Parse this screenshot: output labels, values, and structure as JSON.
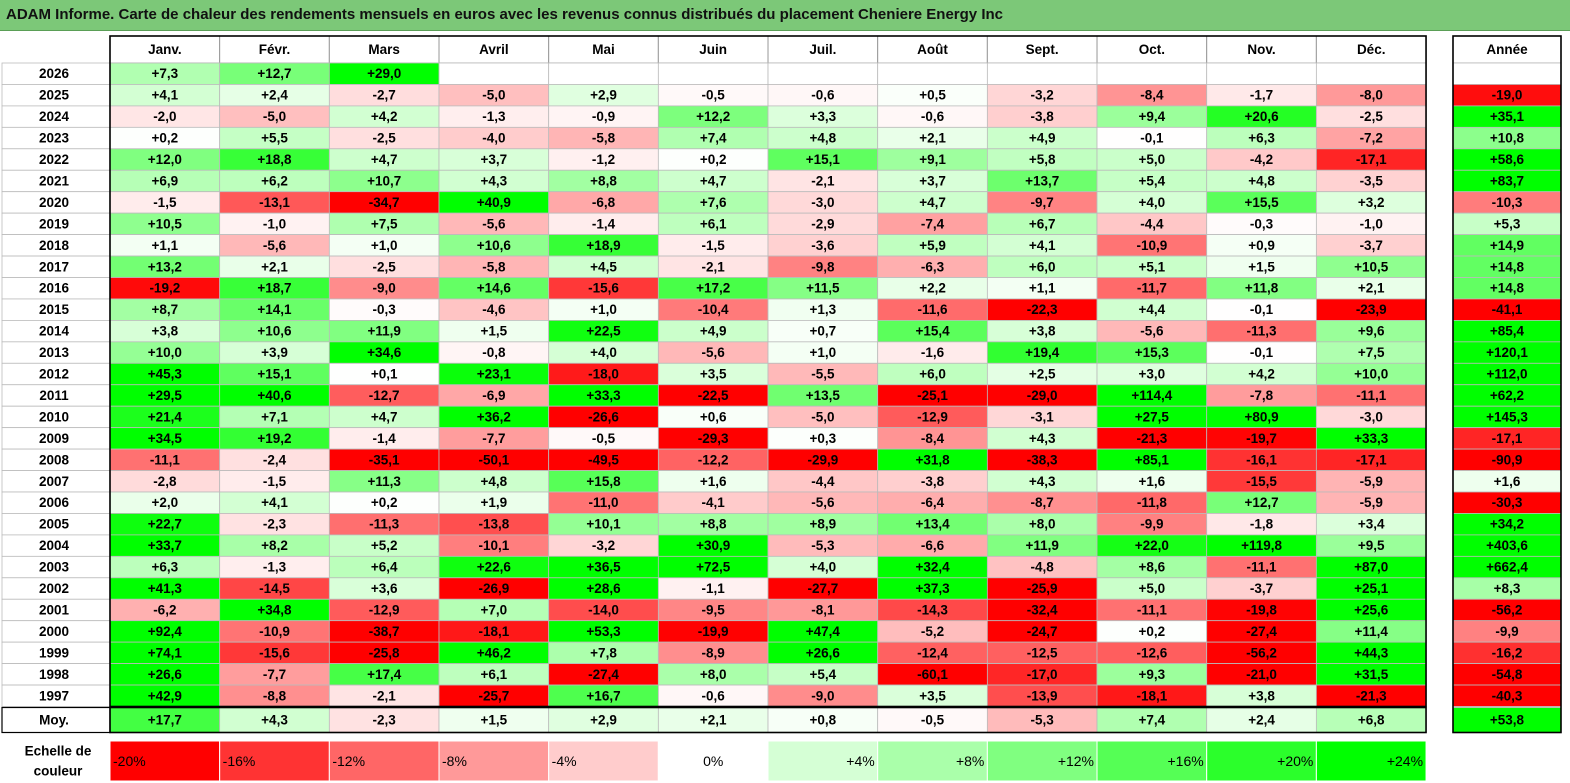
{
  "title": "ADAM Informe. Carte de chaleur des rendements mensuels en euros avec les revenus connus distribués du placement Cheniere Energy Inc",
  "chart_data": {
    "type": "heatmap",
    "months": [
      "Janv.",
      "Févr.",
      "Mars",
      "Avril",
      "Mai",
      "Juin",
      "Juil.",
      "Août",
      "Sept.",
      "Oct.",
      "Nov.",
      "Déc."
    ],
    "year_header": "Année",
    "rows": [
      {
        "label": "2026",
        "values": [
          7.3,
          12.7,
          29.0,
          null,
          null,
          null,
          null,
          null,
          null,
          null,
          null,
          null
        ],
        "year": null
      },
      {
        "label": "2025",
        "values": [
          4.1,
          2.4,
          -2.7,
          -5.0,
          2.9,
          -0.5,
          -0.6,
          0.5,
          -3.2,
          -8.4,
          -1.7,
          -8.0
        ],
        "year": -19.0
      },
      {
        "label": "2024",
        "values": [
          -2.0,
          -5.0,
          4.2,
          -1.3,
          -0.9,
          12.2,
          3.3,
          -0.6,
          -3.8,
          9.4,
          20.6,
          -2.5
        ],
        "year": 35.1
      },
      {
        "label": "2023",
        "values": [
          0.2,
          5.5,
          -2.5,
          -4.0,
          -5.8,
          7.4,
          4.8,
          2.1,
          4.9,
          -0.1,
          6.3,
          -7.2
        ],
        "year": 10.8
      },
      {
        "label": "2022",
        "values": [
          12.0,
          18.8,
          4.7,
          3.7,
          -1.2,
          0.2,
          15.1,
          9.1,
          5.8,
          5.0,
          -4.2,
          -17.1
        ],
        "year": 58.6
      },
      {
        "label": "2021",
        "values": [
          6.9,
          6.2,
          10.7,
          4.3,
          8.8,
          4.7,
          -2.1,
          3.7,
          13.7,
          5.4,
          4.8,
          -3.5
        ],
        "year": 83.7
      },
      {
        "label": "2020",
        "values": [
          -1.5,
          -13.1,
          -34.7,
          40.9,
          -6.8,
          7.6,
          -3.0,
          4.7,
          -9.7,
          4.0,
          15.5,
          3.2
        ],
        "year": -10.3
      },
      {
        "label": "2019",
        "values": [
          10.5,
          -1.0,
          7.5,
          -5.6,
          -1.4,
          6.1,
          -2.9,
          -7.4,
          6.7,
          -4.4,
          -0.3,
          -1.0
        ],
        "year": 5.3
      },
      {
        "label": "2018",
        "values": [
          1.1,
          -5.6,
          1.0,
          10.6,
          18.9,
          -1.5,
          -3.6,
          5.9,
          4.1,
          -10.9,
          0.9,
          -3.7
        ],
        "year": 14.9
      },
      {
        "label": "2017",
        "values": [
          13.2,
          2.1,
          -2.5,
          -5.8,
          4.5,
          -2.1,
          -9.8,
          -6.3,
          6.0,
          5.1,
          1.5,
          10.5
        ],
        "year": 14.8
      },
      {
        "label": "2016",
        "values": [
          -19.2,
          18.7,
          -9.0,
          14.6,
          -15.6,
          17.2,
          11.5,
          2.2,
          1.1,
          -11.7,
          11.8,
          2.1
        ],
        "year": 14.8
      },
      {
        "label": "2015",
        "values": [
          8.7,
          14.1,
          -0.3,
          -4.6,
          1.0,
          -10.4,
          1.3,
          -11.6,
          -22.3,
          4.4,
          -0.1,
          -23.9
        ],
        "year": -41.1
      },
      {
        "label": "2014",
        "values": [
          3.8,
          10.6,
          11.9,
          1.5,
          22.5,
          4.9,
          0.7,
          15.4,
          3.8,
          -5.6,
          -11.3,
          9.6
        ],
        "year": 85.4
      },
      {
        "label": "2013",
        "values": [
          10.0,
          3.9,
          34.6,
          -0.8,
          4.0,
          -5.6,
          1.0,
          -1.6,
          19.4,
          15.3,
          -0.1,
          7.5
        ],
        "year": 120.1
      },
      {
        "label": "2012",
        "values": [
          45.3,
          15.1,
          0.1,
          23.1,
          -18.0,
          3.5,
          -5.5,
          6.0,
          2.5,
          3.0,
          4.2,
          10.0
        ],
        "year": 112.0
      },
      {
        "label": "2011",
        "values": [
          29.5,
          40.6,
          -12.7,
          -6.9,
          33.3,
          -22.5,
          13.5,
          -25.1,
          -29.0,
          114.4,
          -7.8,
          -11.1
        ],
        "year": 62.2
      },
      {
        "label": "2010",
        "values": [
          21.4,
          7.1,
          4.7,
          36.2,
          -26.6,
          0.6,
          -5.0,
          -12.9,
          -3.1,
          27.5,
          80.9,
          -3.0
        ],
        "year": 145.3
      },
      {
        "label": "2009",
        "values": [
          34.5,
          19.2,
          -1.4,
          -7.7,
          -0.5,
          -29.3,
          0.3,
          -8.4,
          4.3,
          -21.3,
          -19.7,
          33.3
        ],
        "year": -17.1
      },
      {
        "label": "2008",
        "values": [
          -11.1,
          -2.4,
          -35.1,
          -50.1,
          -49.5,
          -12.2,
          -29.9,
          31.8,
          -38.3,
          85.1,
          -16.1,
          -17.1
        ],
        "year": -90.9
      },
      {
        "label": "2007",
        "values": [
          -2.8,
          -1.5,
          11.3,
          4.8,
          15.8,
          1.6,
          -4.4,
          -3.8,
          4.3,
          1.6,
          -15.5,
          -5.9
        ],
        "year": 1.6
      },
      {
        "label": "2006",
        "values": [
          2.0,
          4.1,
          0.2,
          1.9,
          -11.0,
          -4.1,
          -5.6,
          -6.4,
          -8.7,
          -11.8,
          12.7,
          -5.9
        ],
        "year": -30.3
      },
      {
        "label": "2005",
        "values": [
          22.7,
          -2.3,
          -11.3,
          -13.8,
          10.1,
          8.8,
          8.9,
          13.4,
          8.0,
          -9.9,
          -1.8,
          3.4
        ],
        "year": 34.2
      },
      {
        "label": "2004",
        "values": [
          33.7,
          8.2,
          5.2,
          -10.1,
          -3.2,
          30.9,
          -5.3,
          -6.6,
          11.9,
          22.0,
          119.8,
          9.5
        ],
        "year": 403.6
      },
      {
        "label": "2003",
        "values": [
          6.3,
          -1.3,
          6.4,
          22.6,
          36.5,
          72.5,
          4.0,
          32.4,
          -4.8,
          8.6,
          -11.1,
          87.0
        ],
        "year": 662.4
      },
      {
        "label": "2002",
        "values": [
          41.3,
          -14.5,
          3.6,
          -26.9,
          28.6,
          -1.1,
          -27.7,
          37.3,
          -25.9,
          5.0,
          -3.7,
          25.1
        ],
        "year": 8.3
      },
      {
        "label": "2001",
        "values": [
          -6.2,
          34.8,
          -12.9,
          7.0,
          -14.0,
          -9.5,
          -8.1,
          -14.3,
          -32.4,
          -11.1,
          -19.8,
          25.6
        ],
        "year": -56.2
      },
      {
        "label": "2000",
        "values": [
          92.4,
          -10.9,
          -38.7,
          -18.1,
          53.3,
          -19.9,
          47.4,
          -5.2,
          -24.7,
          0.2,
          -27.4,
          11.4
        ],
        "year": -9.9
      },
      {
        "label": "1999",
        "values": [
          74.1,
          -15.6,
          -25.8,
          46.2,
          7.8,
          -8.9,
          26.6,
          -12.4,
          -12.5,
          -12.6,
          -56.2,
          44.3
        ],
        "year": -16.2
      },
      {
        "label": "1998",
        "values": [
          26.6,
          -7.7,
          17.4,
          6.1,
          -27.4,
          8.0,
          5.4,
          -60.1,
          -17.0,
          9.3,
          -21.0,
          31.5
        ],
        "year": -54.8
      },
      {
        "label": "1997",
        "values": [
          42.9,
          -8.8,
          -2.1,
          -25.7,
          16.7,
          -0.6,
          -9.0,
          3.5,
          -13.9,
          -18.1,
          3.8,
          -21.3
        ],
        "year": -40.3
      }
    ],
    "average": {
      "label": "Moy.",
      "values": [
        17.7,
        4.3,
        -2.3,
        1.5,
        2.9,
        2.1,
        0.8,
        -0.5,
        -5.3,
        7.4,
        2.4,
        6.8
      ],
      "year": 53.8
    },
    "scale": {
      "label": [
        "Echelle de",
        "couleur"
      ],
      "steps": [
        {
          "text": "-20%",
          "value": -20,
          "align": "left"
        },
        {
          "text": "-16%",
          "value": -16,
          "align": "left"
        },
        {
          "text": "-12%",
          "value": -12,
          "align": "left"
        },
        {
          "text": "-8%",
          "value": -8,
          "align": "left"
        },
        {
          "text": "-4%",
          "value": -4,
          "align": "left"
        },
        {
          "text": "0%",
          "value": 0,
          "align": "center"
        },
        {
          "text": "+4%",
          "value": 4,
          "align": "right"
        },
        {
          "text": "+8%",
          "value": 8,
          "align": "right"
        },
        {
          "text": "+12%",
          "value": 12,
          "align": "right"
        },
        {
          "text": "+16%",
          "value": 16,
          "align": "right"
        },
        {
          "text": "+20%",
          "value": 20,
          "align": "right"
        },
        {
          "text": "+24%",
          "value": 24,
          "align": "right"
        }
      ]
    },
    "colors": {
      "negative_max": "#ff0000",
      "neutral": "#ffffff",
      "positive_max": "#00ff00",
      "title_bg": "#7cc878"
    }
  }
}
